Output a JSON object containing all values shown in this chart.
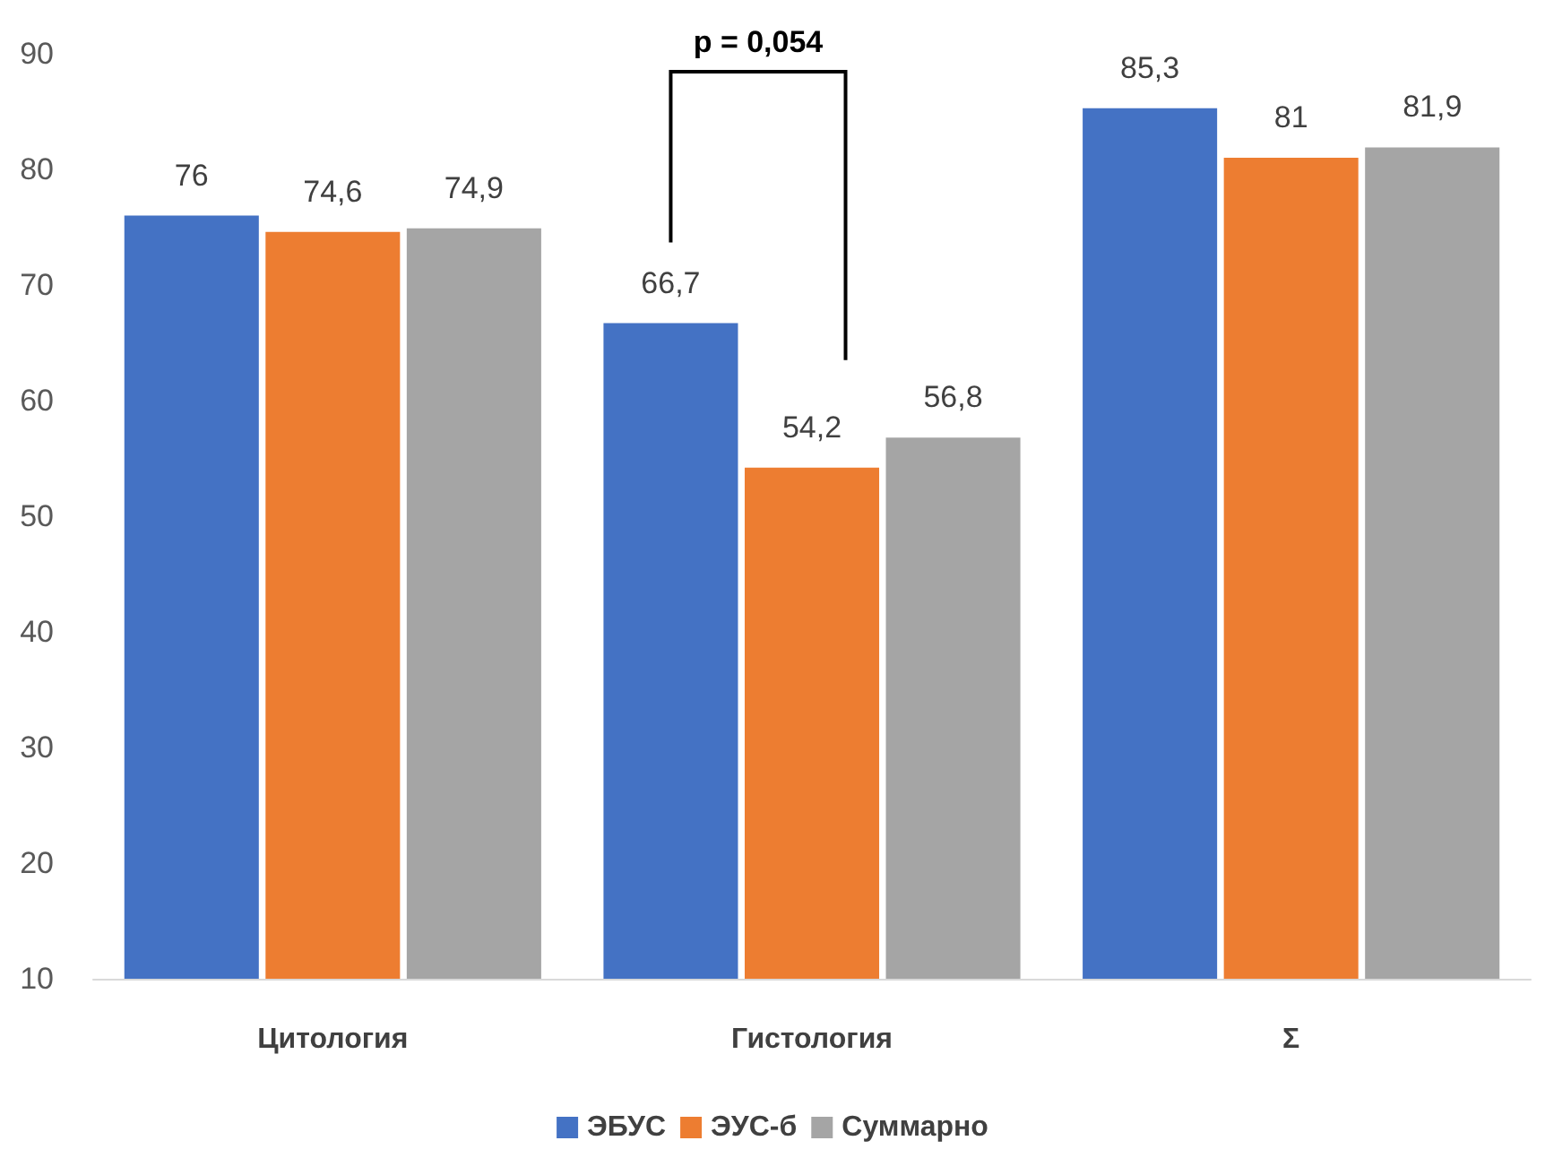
{
  "chart_data": {
    "type": "bar",
    "categories": [
      "Цитология",
      "Гистология",
      "Σ"
    ],
    "series": [
      {
        "name": "ЭБУС",
        "color": "#4472c4",
        "values": [
          76,
          66.7,
          85.3
        ],
        "value_labels": [
          "76",
          "66,7",
          "85,3"
        ]
      },
      {
        "name": "ЭУС-б",
        "color": "#ed7d31",
        "values": [
          74.6,
          54.2,
          81
        ],
        "value_labels": [
          "74,6",
          "54,2",
          "81"
        ]
      },
      {
        "name": "Суммарно",
        "color": "#a5a5a5",
        "values": [
          74.9,
          56.8,
          81.9
        ],
        "value_labels": [
          "74,9",
          "56,8",
          "81,9"
        ]
      }
    ],
    "ylim": [
      10,
      90
    ],
    "yticks": [
      10,
      20,
      30,
      40,
      50,
      60,
      70,
      80,
      90
    ],
    "grid": false,
    "legend": "bottom",
    "annotations": [
      "p = 0,054"
    ]
  }
}
